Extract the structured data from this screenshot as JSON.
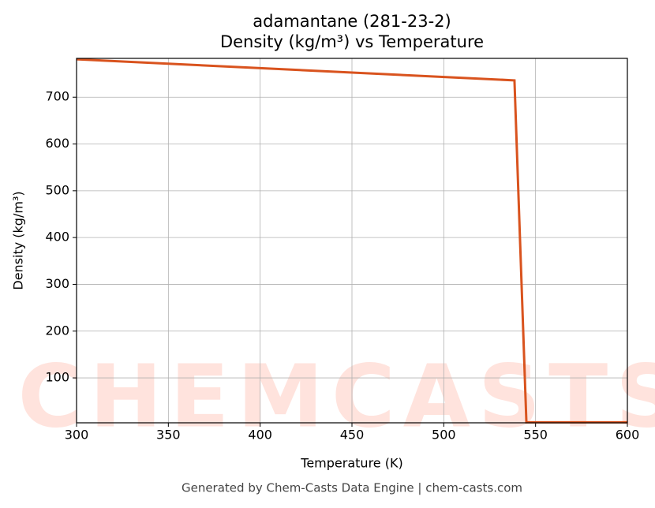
{
  "chart_data": {
    "type": "line",
    "title": "adamantane (281-23-2)",
    "subtitle": "Density (kg/m³) vs Temperature",
    "x_label": "Temperature (K)",
    "y_label": "Density (kg/m³)",
    "watermark": "CHEMCASTS",
    "footer": "Generated by Chem-Casts Data Engine | chem-casts.com",
    "x": [
      300,
      538.5,
      545,
      600
    ],
    "series": [
      {
        "name": "Density",
        "color": "#d9531e",
        "values": [
          781,
          736,
          5,
          5
        ]
      }
    ],
    "xlim": [
      300,
      600
    ],
    "xticks": [
      300,
      350,
      400,
      450,
      500,
      550,
      600
    ],
    "ylim": [
      4,
      783
    ],
    "yticks": [
      100,
      200,
      300,
      400,
      500,
      600,
      700
    ],
    "grid": true
  }
}
